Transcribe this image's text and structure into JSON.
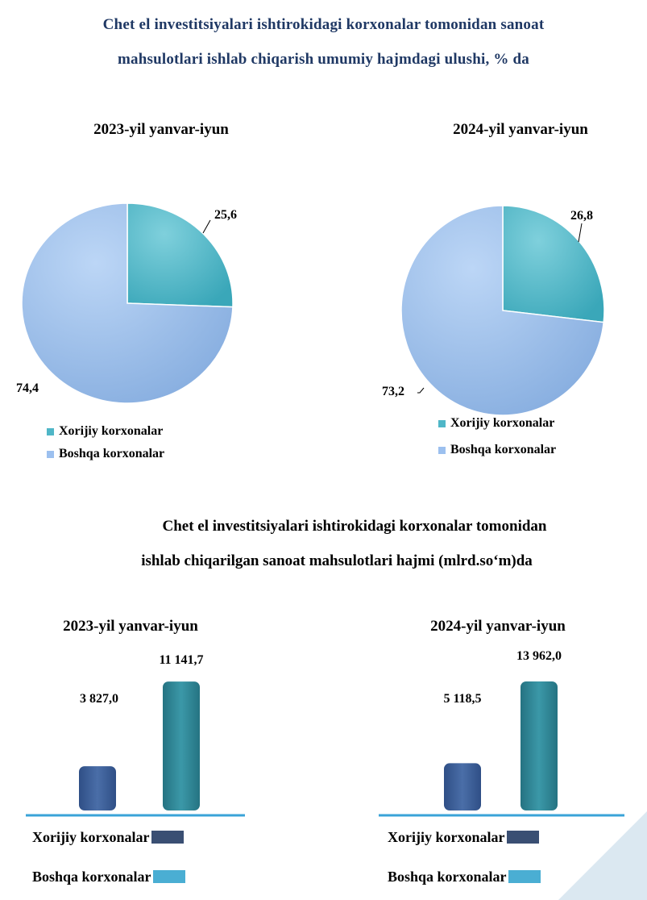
{
  "colors": {
    "foreign": "#4fb6c7",
    "other": "#9cc0ef",
    "bar_foreign": "#3d5f96",
    "bar_other": "#2f8696",
    "legend_foreign_bar": "#3a4f73",
    "legend_other_bar": "#4aaed3",
    "axis_line": "#3aa3d8"
  },
  "titles": {
    "share_line1": "Chet el investitsiyalari ishtirokidagi korxonalar tomonidan sanoat",
    "share_line2": "mahsulotlari ishlab chiqarish umumiy hajmdagi ulushi, % da",
    "volume_line1": "Chet el investitsiyalari ishtirokidagi korxonalar tomonidan",
    "volume_line2": "ishlab chiqarilgan sanoat   mahsulotlari hajmi (mlrd.so‘m)da"
  },
  "chart_data": [
    {
      "type": "pie",
      "title": "2023-yil yanvar-iyun",
      "categories": [
        "Xorijiy korxonalar",
        "Boshqa korxonalar"
      ],
      "values": [
        25.6,
        74.4
      ],
      "value_labels": [
        "25,6",
        "74,4"
      ],
      "legend": "bottom-left"
    },
    {
      "type": "pie",
      "title": "2024-yil yanvar-iyun",
      "categories": [
        "Xorijiy korxonalar",
        "Boshqa korxonalar"
      ],
      "values": [
        26.8,
        73.2
      ],
      "value_labels": [
        "26,8",
        "73,2"
      ],
      "legend": "bottom-left"
    },
    {
      "type": "bar",
      "title": "2023-yil yanvar-iyun",
      "categories": [
        "Xorijiy korxonalar",
        "Boshqa korxonalar"
      ],
      "values": [
        3827.0,
        11141.7
      ],
      "value_labels": [
        "3 827,0",
        "11 141,7"
      ],
      "ylim": [
        0,
        11500
      ],
      "legend": "bottom"
    },
    {
      "type": "bar",
      "title": "2024-yil yanvar-iyun",
      "categories": [
        "Xorijiy korxonalar",
        "Boshqa korxonalar"
      ],
      "values": [
        5118.5,
        13962.0
      ],
      "value_labels": [
        "5 118,5",
        "13 962,0"
      ],
      "ylim": [
        0,
        14400
      ],
      "legend": "bottom"
    }
  ]
}
